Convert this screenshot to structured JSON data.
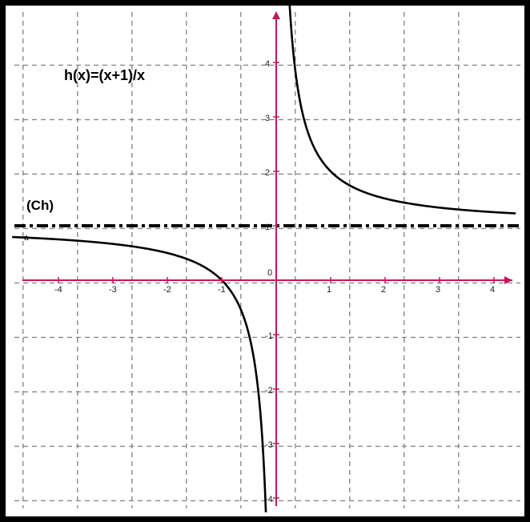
{
  "chart_data": {
    "type": "line",
    "title": "",
    "xlabel": "",
    "ylabel": "",
    "xlim": [
      -4.85,
      4.4
    ],
    "ylim": [
      -4.2,
      4.85
    ],
    "grid": true,
    "x_ticks": [
      "-4",
      "-3",
      "-2",
      "-1",
      "0",
      "1",
      "2",
      "3",
      "4"
    ],
    "y_ticks": [
      "-4",
      "-3",
      "-2",
      "-1",
      "1",
      "2",
      "3",
      "4"
    ],
    "series": [
      {
        "name": "h(x)=(x+1)/x",
        "formula": "(x+1)/x",
        "style": "solid",
        "color": "#000000",
        "domain_left": [
          -4.85,
          -0.19
        ],
        "domain_right": [
          0.21,
          4.4
        ]
      },
      {
        "name": "(Ch)",
        "formula": "y = 1",
        "style": "dash-dot",
        "color": "#000000",
        "y": 1
      }
    ],
    "annotations": [
      "h(x)=(x+1)/x",
      "(Ch)",
      "a"
    ],
    "colors": {
      "axis": "#c2185b",
      "grid": "#888888",
      "curve": "#000000"
    }
  }
}
